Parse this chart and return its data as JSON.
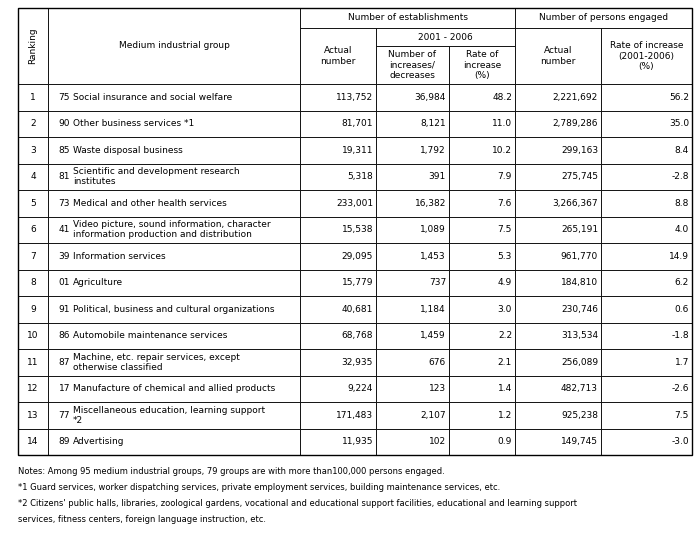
{
  "rows": [
    {
      "rank": "1",
      "code": "75",
      "name": "Social insurance and social welfare",
      "actual_est": "113,752",
      "num_inc": "36,984",
      "rate_inc": "48.2",
      "actual_per": "2,221,692",
      "rate_per": "56.2"
    },
    {
      "rank": "2",
      "code": "90",
      "name": "Other business services *1",
      "actual_est": "81,701",
      "num_inc": "8,121",
      "rate_inc": "11.0",
      "actual_per": "2,789,286",
      "rate_per": "35.0"
    },
    {
      "rank": "3",
      "code": "85",
      "name": "Waste disposal business",
      "actual_est": "19,311",
      "num_inc": "1,792",
      "rate_inc": "10.2",
      "actual_per": "299,163",
      "rate_per": "8.4"
    },
    {
      "rank": "4",
      "code": "81",
      "name": "Scientific and development research\ninstitutes",
      "actual_est": "5,318",
      "num_inc": "391",
      "rate_inc": "7.9",
      "actual_per": "275,745",
      "rate_per": "-2.8"
    },
    {
      "rank": "5",
      "code": "73",
      "name": "Medical and other health services",
      "actual_est": "233,001",
      "num_inc": "16,382",
      "rate_inc": "7.6",
      "actual_per": "3,266,367",
      "rate_per": "8.8"
    },
    {
      "rank": "6",
      "code": "41",
      "name": "Video picture, sound information, character\ninformation production and distribution",
      "actual_est": "15,538",
      "num_inc": "1,089",
      "rate_inc": "7.5",
      "actual_per": "265,191",
      "rate_per": "4.0"
    },
    {
      "rank": "7",
      "code": "39",
      "name": "Information services",
      "actual_est": "29,095",
      "num_inc": "1,453",
      "rate_inc": "5.3",
      "actual_per": "961,770",
      "rate_per": "14.9"
    },
    {
      "rank": "8",
      "code": "01",
      "name": "Agriculture",
      "actual_est": "15,779",
      "num_inc": "737",
      "rate_inc": "4.9",
      "actual_per": "184,810",
      "rate_per": "6.2"
    },
    {
      "rank": "9",
      "code": "91",
      "name": "Political, business and cultural organizations",
      "actual_est": "40,681",
      "num_inc": "1,184",
      "rate_inc": "3.0",
      "actual_per": "230,746",
      "rate_per": "0.6"
    },
    {
      "rank": "10",
      "code": "86",
      "name": "Automobile maintenance services",
      "actual_est": "68,768",
      "num_inc": "1,459",
      "rate_inc": "2.2",
      "actual_per": "313,534",
      "rate_per": "-1.8"
    },
    {
      "rank": "11",
      "code": "87",
      "name": "Machine, etc. repair services, except\notherwise classified",
      "actual_est": "32,935",
      "num_inc": "676",
      "rate_inc": "2.1",
      "actual_per": "256,089",
      "rate_per": "1.7"
    },
    {
      "rank": "12",
      "code": "17",
      "name": "Manufacture of chemical and allied products",
      "actual_est": "9,224",
      "num_inc": "123",
      "rate_inc": "1.4",
      "actual_per": "482,713",
      "rate_per": "-2.6"
    },
    {
      "rank": "13",
      "code": "77",
      "name": "Miscellaneous education, learning support\n*2",
      "actual_est": "171,483",
      "num_inc": "2,107",
      "rate_inc": "1.2",
      "actual_per": "925,238",
      "rate_per": "7.5"
    },
    {
      "rank": "14",
      "code": "89",
      "name": "Advertising",
      "actual_est": "11,935",
      "num_inc": "102",
      "rate_inc": "0.9",
      "actual_per": "149,745",
      "rate_per": "-3.0"
    }
  ],
  "notes": [
    "Notes: Among 95 medium industrial groups, 79 groups are with more than100,000 persons engaged.",
    "*1 Guard services, worker dispatching services, private employment services, building maintenance services, etc.",
    "*2 Citizens' public halls, libraries, zoological gardens, vocational and educational support facilities, educational and learning support",
    "services, fitness centers, foreign language instruction, etc."
  ],
  "bg_color": "#ffffff",
  "line_color": "#000000",
  "fs": 6.5,
  "hfs": 6.5
}
